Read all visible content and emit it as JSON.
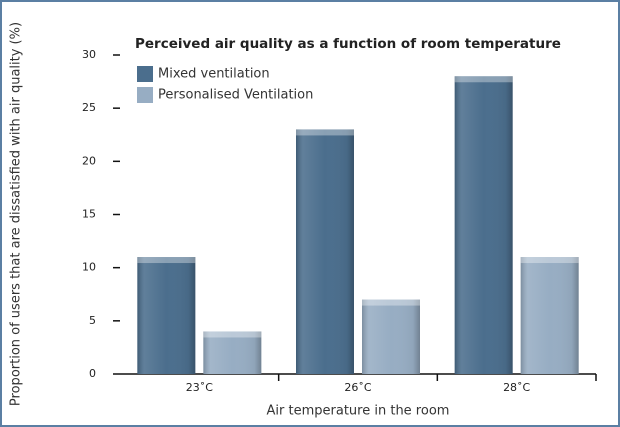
{
  "chart_data": {
    "type": "bar",
    "title": "Perceived air quality as a function of room temperature",
    "y_label": "Proportion of users that are dissatisfied with air quality (%)",
    "x_label": "Air temperature in the room",
    "categories": [
      "23˚C",
      "26˚C",
      "28˚C"
    ],
    "series": [
      {
        "name": "Mixed ventilation",
        "color": "#4b6e8d",
        "values": [
          11,
          23,
          28
        ]
      },
      {
        "name": "Personalised Ventilation",
        "color": "#97adc3",
        "values": [
          4,
          7,
          11
        ]
      }
    ],
    "ylim": [
      0,
      30
    ],
    "yticks": [
      0,
      5,
      10,
      15,
      20,
      25,
      30
    ],
    "legend": "top-left"
  }
}
